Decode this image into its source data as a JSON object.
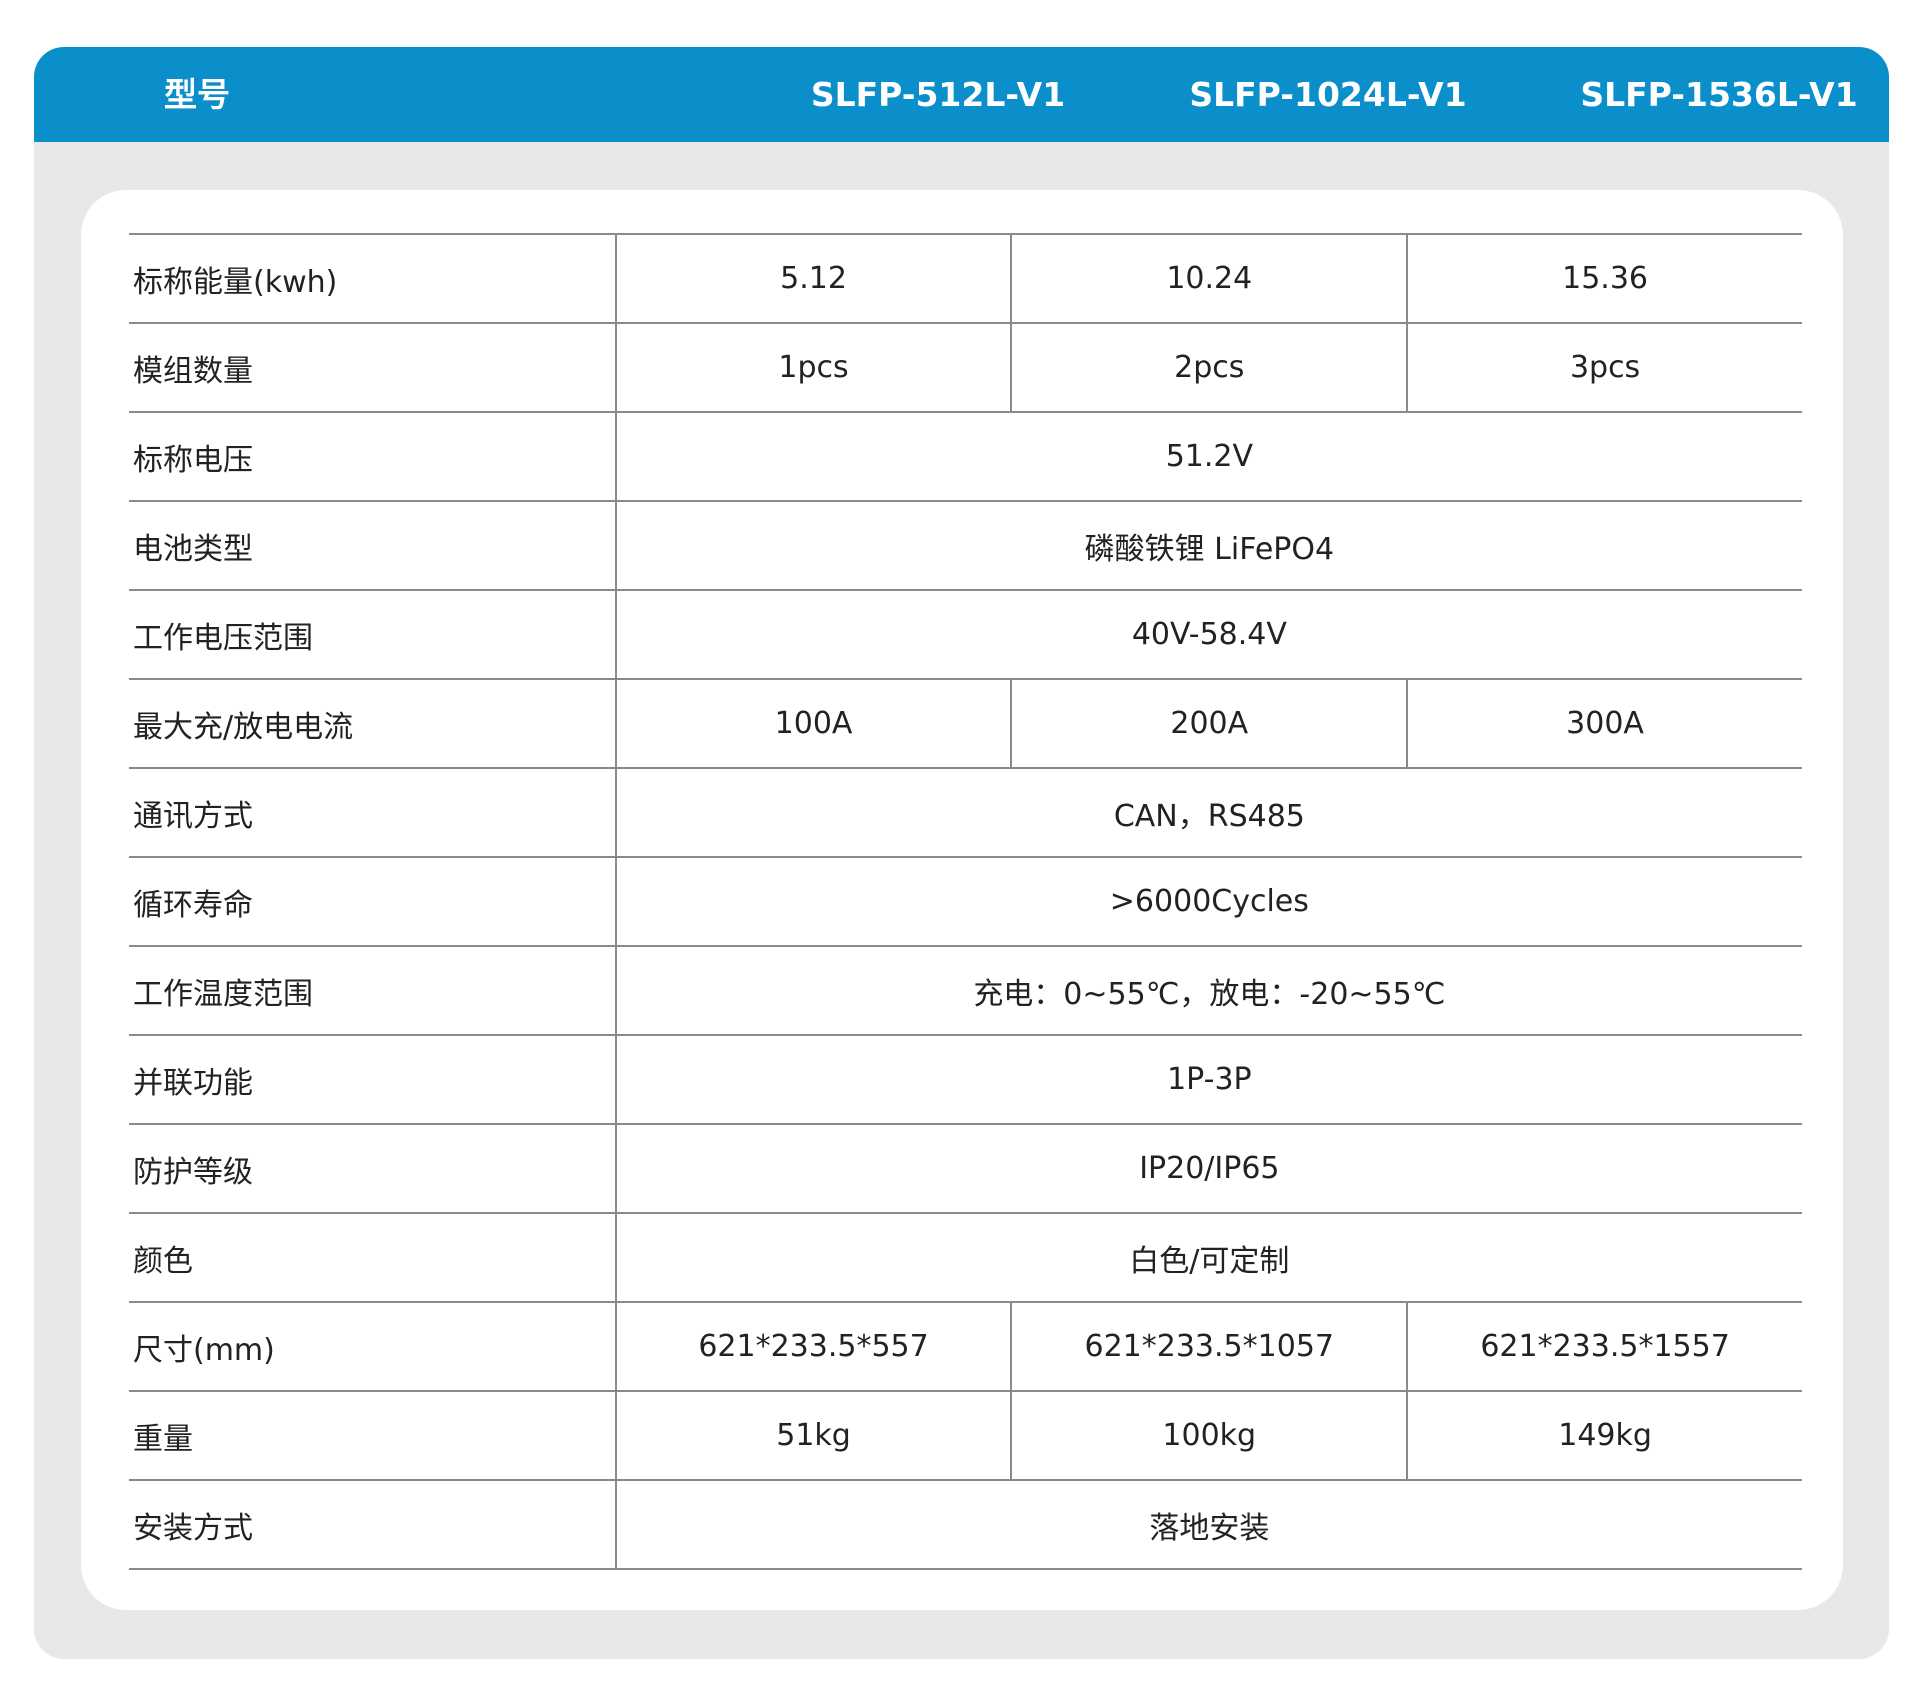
{
  "header": {
    "label": "型号",
    "models": [
      "SLFP-512L-V1",
      "SLFP-1024L-V1",
      "SLFP-1536L-V1"
    ]
  },
  "rows": [
    {
      "label": "标称能量(kwh)",
      "values": [
        "5.12",
        "10.24",
        "15.36"
      ]
    },
    {
      "label": "模组数量",
      "values": [
        "1pcs",
        "2pcs",
        "3pcs"
      ]
    },
    {
      "label": "标称电压",
      "values": [
        "51.2V"
      ]
    },
    {
      "label": "电池类型",
      "values": [
        "磷酸铁锂 LiFePO4"
      ]
    },
    {
      "label": "工作电压范围",
      "values": [
        "40V-58.4V"
      ]
    },
    {
      "label": "最大充/放电电流",
      "values": [
        "100A",
        "200A",
        "300A"
      ]
    },
    {
      "label": "通讯方式",
      "values": [
        "CAN，RS485"
      ]
    },
    {
      "label": "循环寿命",
      "values": [
        ">6000Cycles"
      ]
    },
    {
      "label": "工作温度范围",
      "values": [
        "充电：0~55℃，放电：-20~55℃"
      ]
    },
    {
      "label": "并联功能",
      "values": [
        "1P-3P"
      ]
    },
    {
      "label": "防护等级",
      "values": [
        "IP20/IP65"
      ]
    },
    {
      "label": "颜色",
      "values": [
        "白色/可定制"
      ]
    },
    {
      "label": "尺寸(mm)",
      "values": [
        "621*233.5*557",
        "621*233.5*1057",
        "621*233.5*1557"
      ]
    },
    {
      "label": "重量",
      "values": [
        "51kg",
        "100kg",
        "149kg"
      ]
    },
    {
      "label": "安装方式",
      "values": [
        "落地安装"
      ]
    }
  ]
}
